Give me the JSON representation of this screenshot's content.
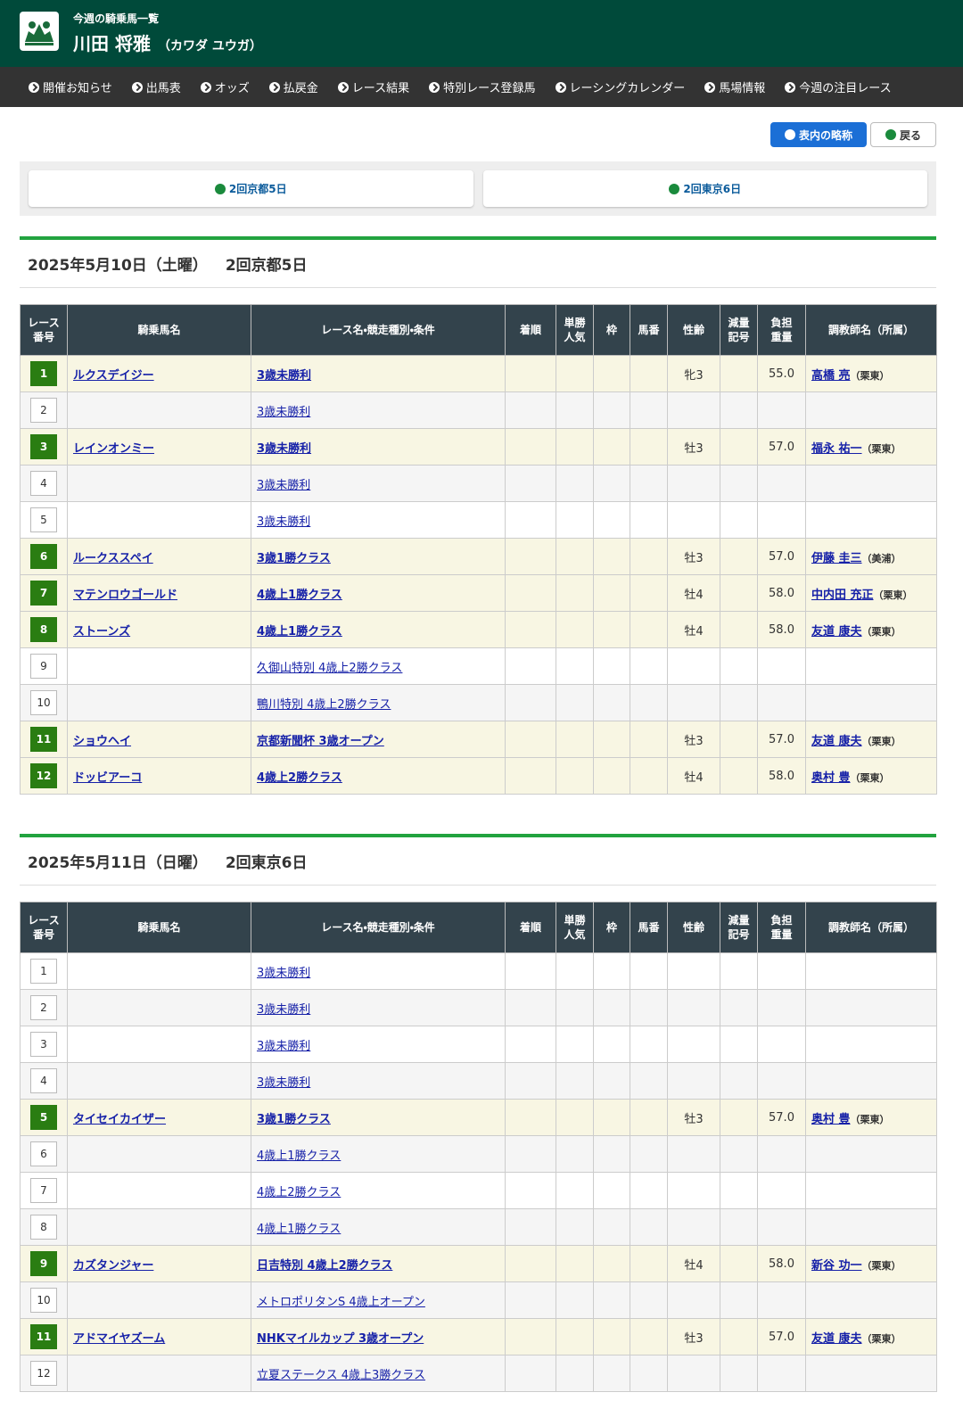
{
  "header": {
    "subtitle": "今週の騎乗馬一覧",
    "name": "川田 将雅",
    "kana": "（カワダ ユウガ）"
  },
  "nav": [
    "開催お知らせ",
    "出馬表",
    "オッズ",
    "払戻金",
    "レース結果",
    "特別レース登録馬",
    "レーシングカレンダー",
    "馬場情報",
    "今週の注目レース"
  ],
  "buttons": {
    "abbr": "表内の略称",
    "back": "戻る"
  },
  "tabs": [
    "2回京都5日",
    "2回東京6日"
  ],
  "columns": [
    [
      "レース",
      "番号"
    ],
    [
      "騎乗馬名"
    ],
    [
      "レース名・競走種別・条件"
    ],
    [
      "着順"
    ],
    [
      "単勝",
      "人気"
    ],
    [
      "枠"
    ],
    [
      "馬番"
    ],
    [
      "性齢"
    ],
    [
      "減量",
      "記号"
    ],
    [
      "負担",
      "重量"
    ],
    [
      "調教師名（所属）"
    ]
  ],
  "days": [
    {
      "date": "2025年5月10日（土曜）",
      "meeting": "2回京都5日",
      "races": [
        {
          "no": 1,
          "horse": "ルクスデイジー",
          "race": "3歳未勝利",
          "sex_age": "牝3",
          "weight": "55.0",
          "trainer": "高橋 亮",
          "stable": "（栗東）"
        },
        {
          "no": 2,
          "race": "3歳未勝利"
        },
        {
          "no": 3,
          "horse": "レインオンミー",
          "race": "3歳未勝利",
          "sex_age": "牡3",
          "weight": "57.0",
          "trainer": "福永 祐一",
          "stable": "（栗東）"
        },
        {
          "no": 4,
          "race": "3歳未勝利"
        },
        {
          "no": 5,
          "race": "3歳未勝利"
        },
        {
          "no": 6,
          "horse": "ルークススペイ",
          "race": "3歳1勝クラス",
          "sex_age": "牡3",
          "weight": "57.0",
          "trainer": "伊藤 圭三",
          "stable": "（美浦）"
        },
        {
          "no": 7,
          "horse": "マテンロウゴールド",
          "race": "4歳上1勝クラス",
          "sex_age": "牡4",
          "weight": "58.0",
          "trainer": "中内田 充正",
          "stable": "（栗東）"
        },
        {
          "no": 8,
          "horse": "ストーンズ",
          "race": "4歳上1勝クラス",
          "sex_age": "牡4",
          "weight": "58.0",
          "trainer": "友道 康夫",
          "stable": "（栗東）"
        },
        {
          "no": 9,
          "race": "久御山特別 4歳上2勝クラス"
        },
        {
          "no": 10,
          "race": "鴨川特別 4歳上2勝クラス"
        },
        {
          "no": 11,
          "horse": "ショウヘイ",
          "race": "京都新聞杯 3歳オープン",
          "sex_age": "牡3",
          "weight": "57.0",
          "trainer": "友道 康夫",
          "stable": "（栗東）"
        },
        {
          "no": 12,
          "horse": "ドッビアーコ",
          "race": "4歳上2勝クラス",
          "sex_age": "牡4",
          "weight": "58.0",
          "trainer": "奥村 豊",
          "stable": "（栗東）"
        }
      ]
    },
    {
      "date": "2025年5月11日（日曜）",
      "meeting": "2回東京6日",
      "races": [
        {
          "no": 1,
          "race": "3歳未勝利"
        },
        {
          "no": 2,
          "race": "3歳未勝利"
        },
        {
          "no": 3,
          "race": "3歳未勝利"
        },
        {
          "no": 4,
          "race": "3歳未勝利"
        },
        {
          "no": 5,
          "horse": "タイセイカイザー",
          "race": "3歳1勝クラス",
          "sex_age": "牡3",
          "weight": "57.0",
          "trainer": "奥村 豊",
          "stable": "（栗東）"
        },
        {
          "no": 6,
          "race": "4歳上1勝クラス"
        },
        {
          "no": 7,
          "race": "4歳上2勝クラス"
        },
        {
          "no": 8,
          "race": "4歳上1勝クラス"
        },
        {
          "no": 9,
          "horse": "カズタンジャー",
          "race": "日吉特別 4歳上2勝クラス",
          "sex_age": "牡4",
          "weight": "58.0",
          "trainer": "新谷 功一",
          "stable": "（栗東）"
        },
        {
          "no": 10,
          "race": "メトロポリタンS 4歳上オープン"
        },
        {
          "no": 11,
          "horse": "アドマイヤズーム",
          "race": "NHKマイルカップ 3歳オープン",
          "sex_age": "牡3",
          "weight": "57.0",
          "trainer": "友道 康夫",
          "stable": "（栗東）"
        },
        {
          "no": 12,
          "race": "立夏ステークス 4歳上3勝クラス"
        }
      ]
    }
  ]
}
